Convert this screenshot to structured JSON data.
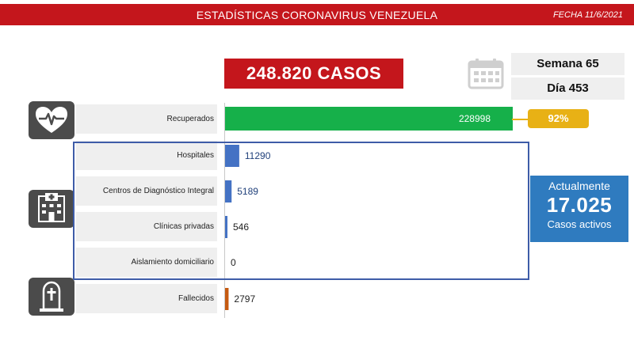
{
  "header": {
    "title": "ESTADÍSTICAS CORONAVIRUS VENEZUELA",
    "date": "FECHA 11/6/2021"
  },
  "total_cases": "248.820 CASOS",
  "week": "Semana 65",
  "day": "Día 453",
  "active": {
    "top": "Actualmente",
    "value": "17.025",
    "bottom": "Casos activos"
  },
  "recovered_percent": "92%",
  "icons": {
    "calendar": "calendar-icon",
    "recovered": "heart-pulse-icon",
    "hospital": "hospital-building-icon",
    "deceased": "tombstone-icon"
  },
  "colors": {
    "header": "#c4161c",
    "recovered": "#16b04a",
    "hospital": "#4472c4",
    "deceased": "#c55a11",
    "badge": "#e8b115",
    "active": "#2f7bbf"
  },
  "chart_data": {
    "type": "bar",
    "orientation": "horizontal",
    "categories": [
      "Recuperados",
      "Hospitales",
      "Centros de Diagnóstico Integral",
      "Clínicas privadas",
      "Aislamiento domiciliario",
      "Fallecidos"
    ],
    "values": [
      228998,
      11290,
      5189,
      546,
      0,
      2797
    ],
    "value_labels": [
      "228998",
      "11290",
      "5189",
      "546",
      "0",
      "2797"
    ],
    "colors": [
      "#16b04a",
      "#4472c4",
      "#4472c4",
      "#4472c4",
      "#4472c4",
      "#c55a11"
    ]
  }
}
